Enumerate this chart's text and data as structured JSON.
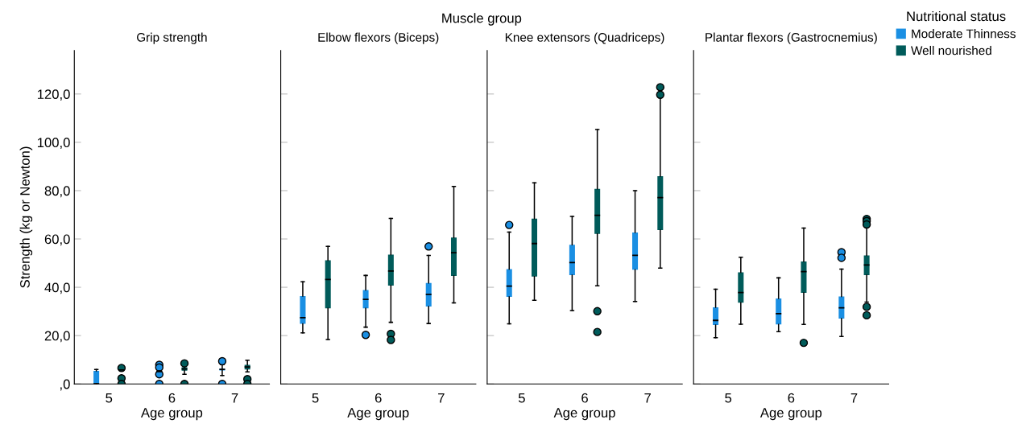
{
  "chart_data": [
    {
      "type": "box",
      "title": "Grip strength",
      "xlabel": "Age group",
      "ylabel": "Strength (kg or Newton)",
      "annotations": [
        "Muscle group"
      ],
      "categories": [
        "5",
        "6",
        "7"
      ],
      "ylim": [
        0,
        138
      ],
      "yticks": [
        {
          "value": 0,
          "label": ",0"
        },
        {
          "value": 20,
          "label": "20,0"
        },
        {
          "value": 40,
          "label": "40,0"
        },
        {
          "value": 60,
          "label": "60,0"
        },
        {
          "value": 80,
          "label": "80,0"
        },
        {
          "value": 100,
          "label": "100,0"
        },
        {
          "value": 120,
          "label": "120,0"
        }
      ],
      "grid": false,
      "series": [
        {
          "color": "#1a8fe3",
          "boxes": [
            {
              "low": 0,
              "q1": 0,
              "median": 0,
              "q3": 5.4,
              "high": 6.0
            },
            {
              "low": 4.5,
              "q1": 4.8,
              "median": 5.1,
              "q3": 5.4,
              "high": 5.7,
              "outliers": [
                7.9,
                6.8,
                4.0,
                0
              ]
            },
            {
              "low": 3.5,
              "q1": 5.6,
              "median": 6.0,
              "q3": 6.3,
              "high": 8.0,
              "outliers": [
                9.4,
                0
              ]
            }
          ]
        },
        {
          "color": "#005b5a",
          "boxes": [
            {
              "low": 5.3,
              "q1": 5.3,
              "median": 5.8,
              "q3": 6.3,
              "high": 6.3,
              "outliers": [
                6.6,
                2.3,
                0
              ]
            },
            {
              "low": 4.0,
              "q1": 5.5,
              "median": 6.2,
              "q3": 6.9,
              "high": 7.5,
              "outliers": [
                8.5,
                0
              ]
            },
            {
              "low": 5.0,
              "q1": 6.0,
              "median": 7.0,
              "q3": 7.9,
              "high": 9.8,
              "outliers": [
                2.0,
                0
              ]
            }
          ]
        }
      ]
    },
    {
      "type": "box",
      "title": "Elbow flexors (Biceps)",
      "xlabel": "Age group",
      "categories": [
        "5",
        "6",
        "7"
      ],
      "ylim": [
        0,
        138
      ],
      "yticks": [
        0,
        20,
        40,
        60,
        80,
        100,
        120
      ],
      "tick_labels": "x",
      "grid": false,
      "series": [
        {
          "color": "#1a8fe3",
          "boxes": [
            {
              "low": 21.1,
              "q1": 24.9,
              "median": 27.4,
              "q3": 36.4,
              "high": 42.3
            },
            {
              "low": 23.5,
              "q1": 31.3,
              "median": 35.0,
              "q3": 38.9,
              "high": 44.9,
              "outliers": [
                20.3
              ]
            },
            {
              "low": 25.0,
              "q1": 32.0,
              "median": 37.1,
              "q3": 41.8,
              "high": 53.2,
              "outliers": [
                56.9
              ]
            }
          ]
        },
        {
          "color": "#005b5a",
          "boxes": [
            {
              "low": 18.4,
              "q1": 31.3,
              "median": 43.2,
              "q3": 51.2,
              "high": 56.9
            },
            {
              "low": 25.5,
              "q1": 40.7,
              "median": 46.7,
              "q3": 53.5,
              "high": 68.5,
              "outliers": [
                20.7,
                18.2
              ]
            },
            {
              "low": 33.5,
              "q1": 44.7,
              "median": 54.3,
              "q3": 60.6,
              "high": 81.7
            }
          ]
        }
      ]
    },
    {
      "type": "box",
      "title": "Knee extensors (Quadriceps)",
      "xlabel": "Age group",
      "categories": [
        "5",
        "6",
        "7"
      ],
      "ylim": [
        0,
        138
      ],
      "yticks": [
        0,
        20,
        40,
        60,
        80,
        100,
        120
      ],
      "tick_labels": "x",
      "grid": false,
      "series": [
        {
          "color": "#1a8fe3",
          "boxes": [
            {
              "low": 24.9,
              "q1": 36.0,
              "median": 40.5,
              "q3": 47.5,
              "high": 62.8,
              "outliers": [
                65.8
              ]
            },
            {
              "low": 30.4,
              "q1": 45.0,
              "median": 50.2,
              "q3": 57.6,
              "high": 69.3
            },
            {
              "low": 34.1,
              "q1": 47.3,
              "median": 53.2,
              "q3": 62.7,
              "high": 80.0
            }
          ]
        },
        {
          "color": "#005b5a",
          "boxes": [
            {
              "low": 34.6,
              "q1": 44.4,
              "median": 58.1,
              "q3": 68.4,
              "high": 83.2
            },
            {
              "low": 40.6,
              "q1": 62.1,
              "median": 69.8,
              "q3": 80.7,
              "high": 105.3,
              "outliers": [
                30.1,
                21.5
              ]
            },
            {
              "low": 47.9,
              "q1": 63.7,
              "median": 77.1,
              "q3": 86.0,
              "high": 118.8,
              "outliers": [
                122.8,
                119.7
              ]
            }
          ]
        }
      ]
    },
    {
      "type": "box",
      "title": "Plantar flexors (Gastrocnemius)",
      "xlabel": "Age group",
      "categories": [
        "5",
        "6",
        "7"
      ],
      "ylim": [
        0,
        138
      ],
      "yticks": [
        0,
        20,
        40,
        60,
        80,
        100,
        120
      ],
      "tick_labels": "x",
      "grid": false,
      "legend": "top right",
      "legend_title": "Nutritional status",
      "series": [
        {
          "name": "Moderate Thinness",
          "color": "#1a8fe3",
          "boxes": [
            {
              "low": 19.1,
              "q1": 24.4,
              "median": 26.3,
              "q3": 31.7,
              "high": 39.2
            },
            {
              "low": 21.6,
              "q1": 24.6,
              "median": 29.1,
              "q3": 35.4,
              "high": 43.9
            },
            {
              "low": 19.6,
              "q1": 27.0,
              "median": 31.5,
              "q3": 36.2,
              "high": 47.5,
              "outliers": [
                54.5,
                52.2
              ]
            }
          ]
        },
        {
          "name": "Well nourished",
          "color": "#005b5a",
          "boxes": [
            {
              "low": 24.7,
              "q1": 33.6,
              "median": 37.8,
              "q3": 46.2,
              "high": 52.4
            },
            {
              "low": 24.6,
              "q1": 37.7,
              "median": 46.5,
              "q3": 50.7,
              "high": 64.5,
              "outliers": [
                17.0
              ]
            },
            {
              "low": 33.9,
              "q1": 45.0,
              "median": 49.2,
              "q3": 53.2,
              "high": 64.9,
              "outliers": [
                68.3,
                67.4,
                66.0,
                31.9,
                28.4
              ]
            }
          ]
        }
      ]
    }
  ]
}
